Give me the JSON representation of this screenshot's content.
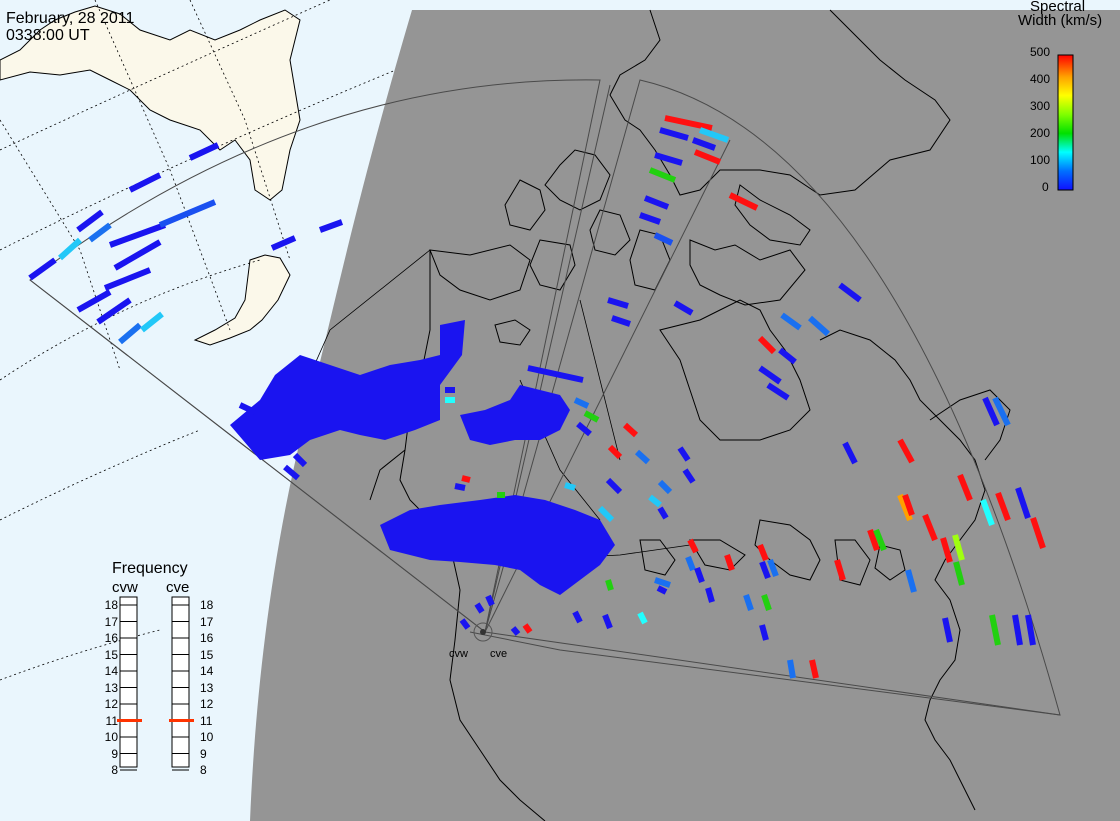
{
  "header": {
    "date": "February, 28 2011",
    "time": "0338:00 UT"
  },
  "colorbar": {
    "title_line1": "Spectral",
    "title_line2": "Width (km/s)",
    "ticks": [
      "500",
      "400",
      "300",
      "200",
      "100",
      "0"
    ],
    "range": [
      0,
      500
    ],
    "colors": [
      "#1010ff",
      "#00b0ff",
      "#00ffff",
      "#00e000",
      "#80ff00",
      "#ffff00",
      "#ffa000",
      "#ff0000"
    ]
  },
  "frequency": {
    "title": "Frequency",
    "radars": [
      {
        "name": "cvw",
        "value": 11
      },
      {
        "name": "cve",
        "value": 11
      }
    ],
    "ticks": [
      "18",
      "17",
      "16",
      "15",
      "14",
      "13",
      "12",
      "11",
      "10",
      "9",
      "8"
    ],
    "marker_color": "#ff3300"
  },
  "sites": [
    {
      "name": "cvw"
    },
    {
      "name": "cve"
    }
  ],
  "colors": {
    "night": "#959595",
    "ocean_day": "#eaf6fd",
    "land_day": "#fbf8ea",
    "coast": "#000000",
    "fov": "#555555"
  }
}
